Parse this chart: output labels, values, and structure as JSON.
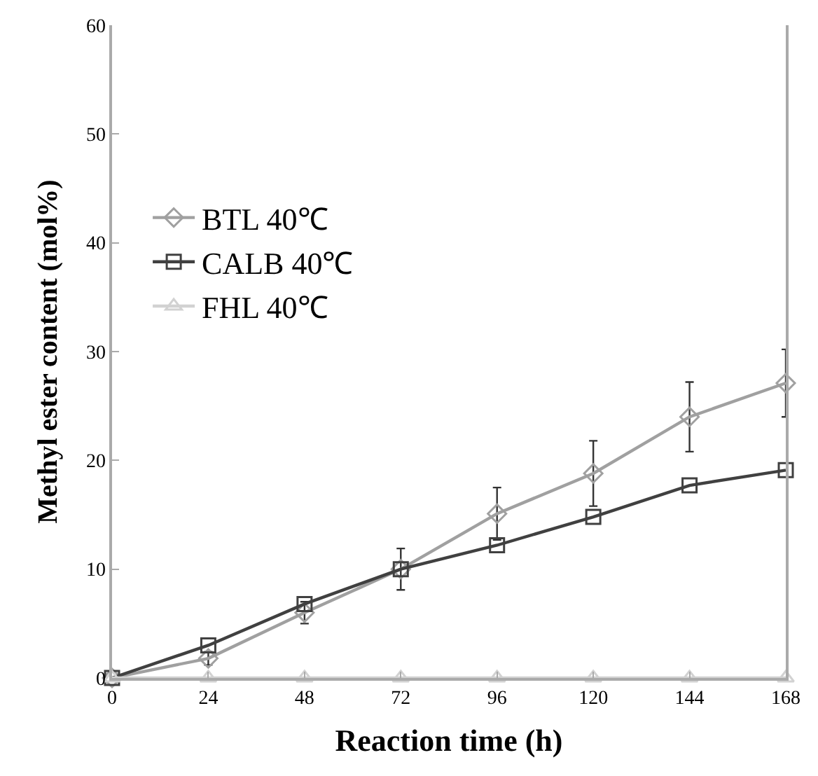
{
  "chart_data": {
    "type": "line",
    "xlabel": "Reaction time (h)",
    "ylabel": "Methyl ester content (mol%)",
    "x": [
      0,
      24,
      48,
      72,
      96,
      120,
      144,
      168
    ],
    "xlim": [
      0,
      168
    ],
    "xticks": [
      0,
      24,
      48,
      72,
      96,
      120,
      144,
      168
    ],
    "ylim": [
      0,
      60
    ],
    "yticks": [
      0,
      10,
      20,
      30,
      40,
      50,
      60
    ],
    "legend": "top left",
    "series": [
      {
        "name": "BTL 40℃",
        "color": "#a0a0a0",
        "marker": "diamond",
        "values": [
          0,
          1.8,
          6.0,
          10.0,
          15.1,
          18.8,
          24.0,
          27.1
        ],
        "errors": [
          null,
          0.6,
          1.0,
          1.9,
          2.4,
          3.0,
          3.2,
          3.1
        ]
      },
      {
        "name": "CALB 40℃",
        "color": "#404040",
        "marker": "square",
        "values": [
          0,
          3.0,
          6.8,
          10.0,
          12.2,
          14.8,
          17.7,
          19.1
        ]
      },
      {
        "name": "FHL 40℃",
        "color": "#d2d2d2",
        "marker": "triangle",
        "values": [
          0,
          0,
          0,
          0,
          0,
          0,
          0,
          0
        ]
      }
    ]
  }
}
